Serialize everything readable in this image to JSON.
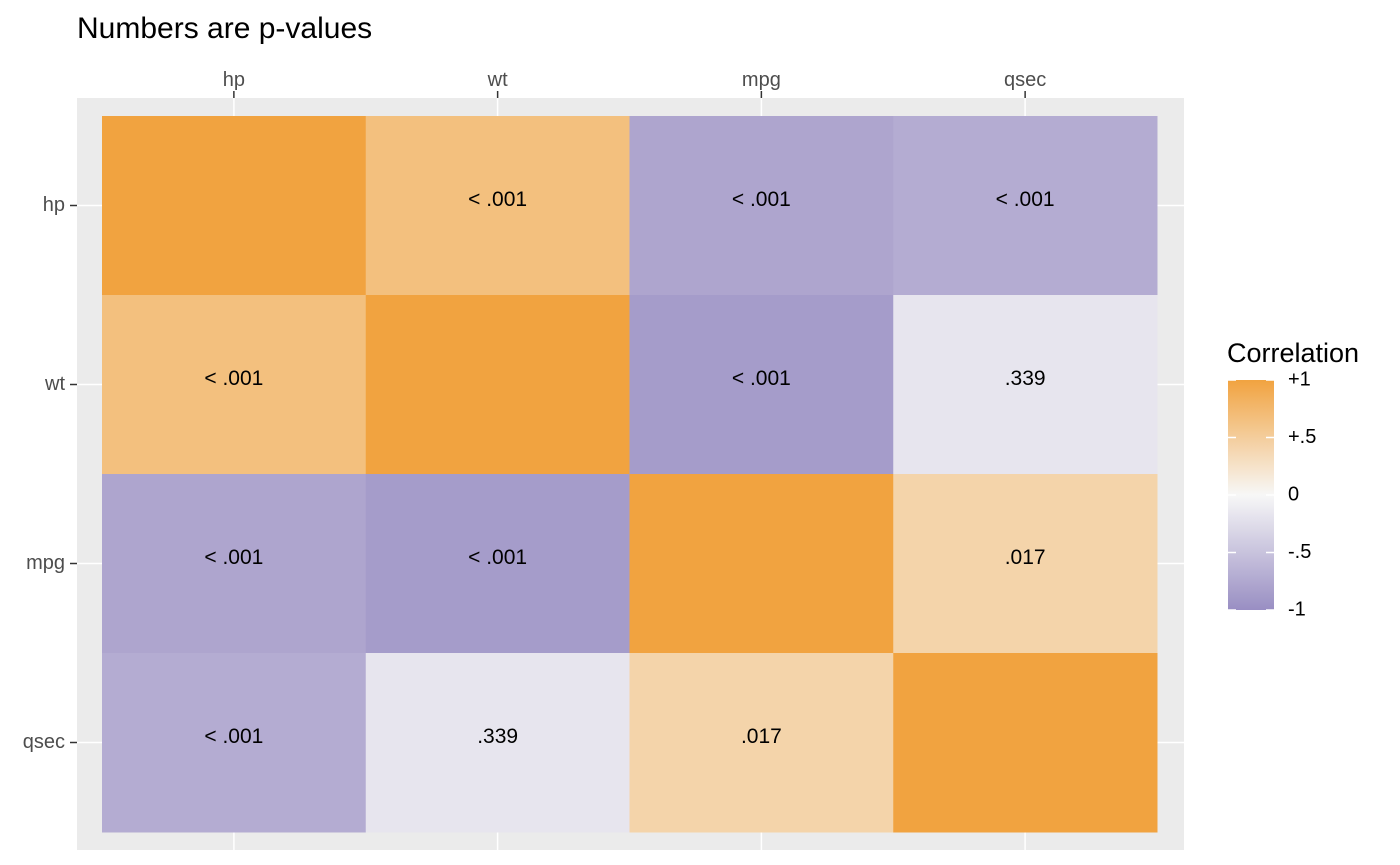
{
  "chart_data": {
    "type": "heatmap",
    "title": "Numbers are p-values",
    "x_categories": [
      "hp",
      "wt",
      "mpg",
      "qsec"
    ],
    "y_categories": [
      "hp",
      "wt",
      "mpg",
      "qsec"
    ],
    "correlations": [
      [
        1.0,
        0.66,
        -0.78,
        -0.71
      ],
      [
        0.66,
        1.0,
        -0.87,
        -0.17
      ],
      [
        -0.78,
        -0.87,
        1.0,
        0.42
      ],
      [
        -0.71,
        -0.17,
        0.42,
        1.0
      ]
    ],
    "cell_labels": [
      [
        "",
        "< .001",
        "< .001",
        "< .001"
      ],
      [
        "< .001",
        "",
        "< .001",
        ".339"
      ],
      [
        "< .001",
        "< .001",
        "",
        ".017"
      ],
      [
        "< .001",
        ".339",
        ".017",
        ""
      ]
    ],
    "legend": {
      "title": "Correlation",
      "placement": "right",
      "range": [
        -1,
        1
      ],
      "ticks": [
        1,
        0.5,
        0,
        -0.5,
        -1
      ],
      "tick_labels": [
        "+1",
        "+.5",
        "0",
        "-.5",
        "-1"
      ]
    },
    "colors": {
      "positive": "#F1A340",
      "neutral": "#F7F7F7",
      "negative": "#998EC3",
      "panel_background": "#EBEBEB",
      "grid": "#FFFFFF"
    },
    "x_axis_position": "top",
    "grid": true
  }
}
